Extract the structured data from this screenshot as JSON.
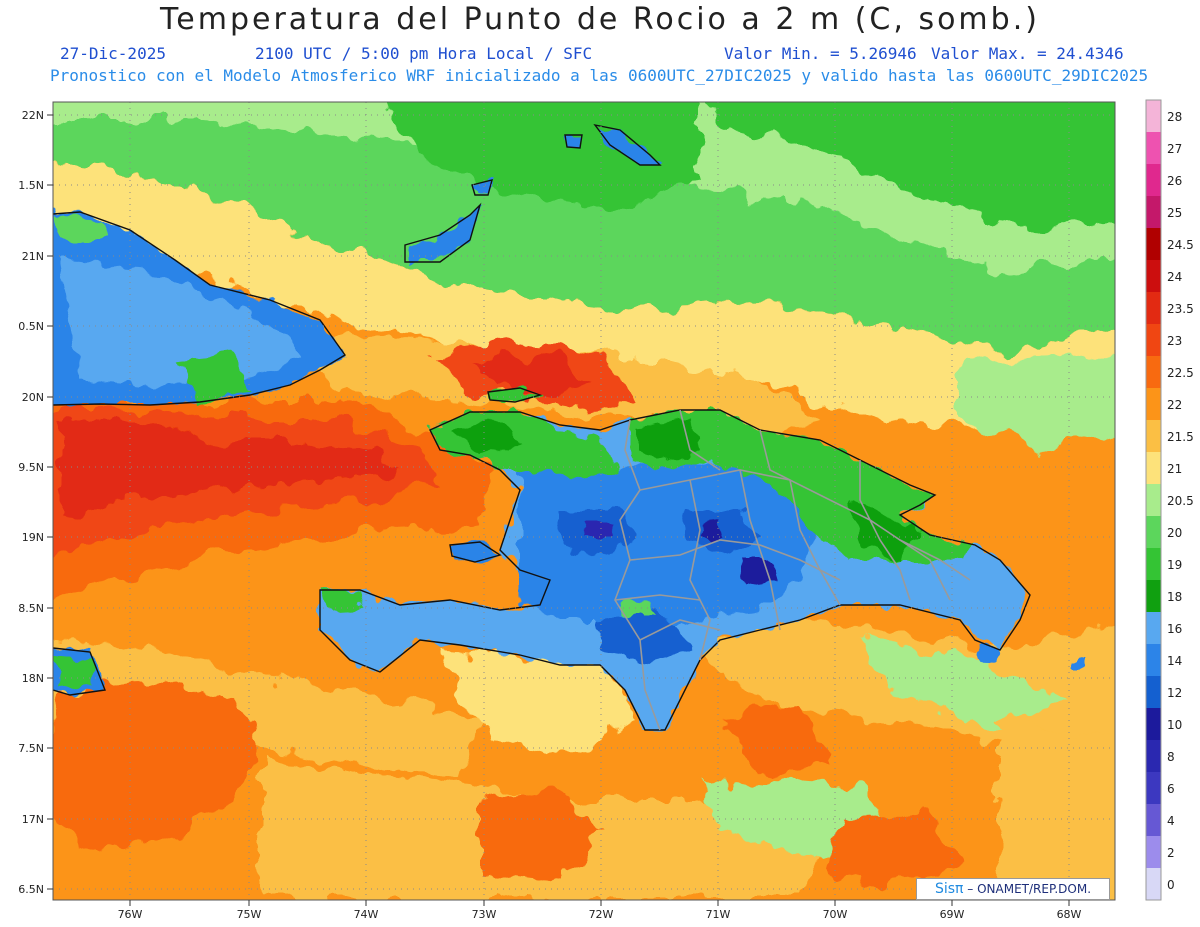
{
  "header": {
    "title": "Temperatura del Punto de Rocio a 2 m (C, somb.)",
    "date": "27-Dic-2025",
    "time": "2100 UTC / 5:00 pm Hora Local / SFC",
    "min_value": "Valor Min. = 5.26946",
    "max_value": "Valor Max. = 24.4346",
    "model_info": "Pronostico con el Modelo Atmosferico WRF inicializado a las 0600UTC_27DIC2025 y valido hasta las  0600UTC_29DIC2025"
  },
  "axes": {
    "lat_labels": [
      "22N",
      "1.5N",
      "21N",
      "0.5N",
      "20N",
      "9.5N",
      "19N",
      "8.5N",
      "18N",
      "7.5N",
      "17N",
      "6.5N"
    ],
    "lon_labels": [
      "76W",
      "75W",
      "74W",
      "73W",
      "72W",
      "71W",
      "70W",
      "69W",
      "68W"
    ]
  },
  "colorbar": {
    "levels": [
      "28",
      "27",
      "26",
      "25",
      "24.5",
      "24",
      "23.5",
      "23",
      "22.5",
      "22",
      "21.5",
      "21",
      "20.5",
      "20",
      "19",
      "18",
      "16",
      "14",
      "12",
      "10",
      "8",
      "6",
      "4",
      "2",
      "0"
    ],
    "colors": [
      "#f4b4d8",
      "#ee52b0",
      "#e0288e",
      "#c4186a",
      "#b00000",
      "#cc0e0e",
      "#e22a12",
      "#f04612",
      "#f86a10",
      "#fc9418",
      "#fbbf44",
      "#fde27a",
      "#a8ec8c",
      "#5cd65c",
      "#34c434",
      "#10a010",
      "#58a8f0",
      "#2c84e8",
      "#1460d0",
      "#1c1a9c",
      "#2a28b0",
      "#3c38c0",
      "#6658d4",
      "#9c8cec",
      "#d8d8f6"
    ]
  },
  "credit": {
    "brand": "Sisπ",
    "text": " – ONAMET/REP.DOM."
  }
}
